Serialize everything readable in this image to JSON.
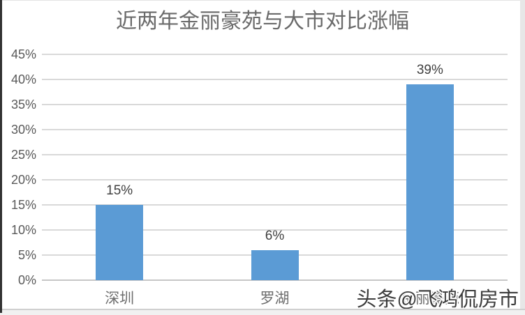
{
  "chart_data": {
    "type": "bar",
    "title": "近两年金丽豪苑与大市对比涨幅",
    "categories": [
      "深圳",
      "罗湖",
      "金丽豪苑"
    ],
    "values": [
      15,
      6,
      39
    ],
    "data_labels": [
      "15%",
      "6%",
      "39%"
    ],
    "xlabel": "",
    "ylabel": "",
    "ylim": [
      0,
      45
    ],
    "ytick_step": 5,
    "ytick_labels": [
      "0%",
      "5%",
      "10%",
      "15%",
      "20%",
      "25%",
      "30%",
      "35%",
      "40%",
      "45%"
    ],
    "grid": true,
    "legend": "none",
    "bar_color": "#5b9bd5",
    "gridline_color": "#d9d9d9",
    "title_color": "#6a6a6a",
    "label_color": "#3f3f3f",
    "tick_color": "#595959"
  },
  "watermark": {
    "text": "头条@飞鸿侃房市"
  }
}
